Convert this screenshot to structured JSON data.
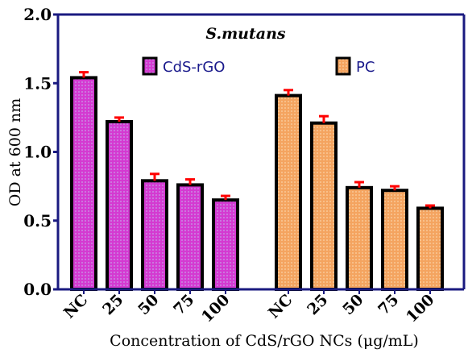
{
  "colors": {
    "axis": "#1a1a80",
    "bar_border": "#000000",
    "error_bar": "#ff0000",
    "legend_text": "#1a1a8c",
    "cds_fill": "#d43ad1",
    "cds_dot": "#c6a0e8",
    "pc_fill": "#f4a460",
    "pc_dot": "#fbd3a6"
  },
  "chart_data": {
    "type": "bar",
    "title": "S.mutans",
    "xlabel": "Concentration of CdS/rGO NCs (μg/mL)",
    "ylabel": "OD at 600 nm",
    "ylim": [
      0,
      2.0
    ],
    "yticks": [
      "0.0",
      "0.5",
      "1.0",
      "1.5",
      "2.0"
    ],
    "grid": false,
    "legend_placement": "top",
    "groups": [
      {
        "name": "CdS-rGO",
        "categories": [
          "NC",
          "25",
          "50",
          "75",
          "100"
        ],
        "values": [
          1.54,
          1.22,
          0.79,
          0.76,
          0.65
        ],
        "errors": [
          0.04,
          0.03,
          0.05,
          0.04,
          0.03
        ]
      },
      {
        "name": "PC",
        "categories": [
          "NC",
          "25",
          "50",
          "75",
          "100"
        ],
        "values": [
          1.41,
          1.21,
          0.74,
          0.72,
          0.59
        ],
        "errors": [
          0.04,
          0.05,
          0.04,
          0.03,
          0.02
        ]
      }
    ]
  }
}
